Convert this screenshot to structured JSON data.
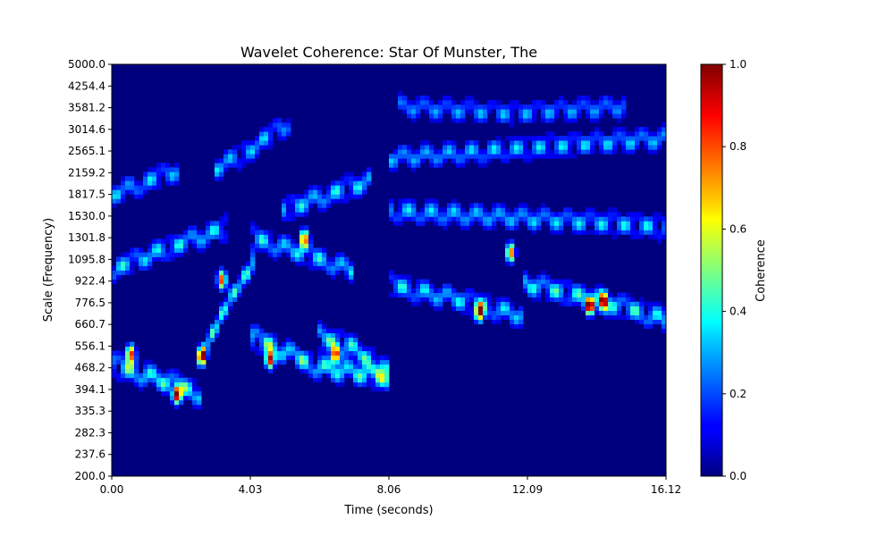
{
  "chart_data": {
    "type": "heatmap",
    "title": "Wavelet Coherence: Star Of Munster, The",
    "xlabel": "Time (seconds)",
    "ylabel": "Scale (Frequency)",
    "xlim": [
      0.0,
      16.12
    ],
    "ylim": [
      200.0,
      5000.0
    ],
    "x_ticks": [
      "0.00",
      "4.03",
      "8.06",
      "12.09",
      "16.12"
    ],
    "y_ticks": [
      "200.0",
      "237.6",
      "282.3",
      "335.3",
      "394.1",
      "468.2",
      "556.1",
      "660.7",
      "776.5",
      "922.4",
      "1095.8",
      "1301.8",
      "1530.0",
      "1817.5",
      "2159.2",
      "2565.1",
      "3014.6",
      "3581.2",
      "4254.4",
      "5000.0"
    ],
    "colorbar": {
      "label": "Coherence",
      "range": [
        0.0,
        1.0
      ],
      "ticks": [
        "0.0",
        "0.2",
        "0.4",
        "0.6",
        "0.8",
        "1.0"
      ],
      "colormap": "jet"
    },
    "background_color": "#00007f",
    "bands": [
      {
        "t_start": 0.0,
        "t_end": 2.6,
        "center": [
          480,
          430,
          380
        ],
        "strength": 0.55
      },
      {
        "t_start": 0.0,
        "t_end": 3.4,
        "center": [
          1000,
          1200,
          1400
        ],
        "strength": 0.45
      },
      {
        "t_start": 0.0,
        "t_end": 2.0,
        "center": [
          1800,
          2000,
          2200
        ],
        "strength": 0.4
      },
      {
        "t_start": 2.6,
        "t_end": 4.2,
        "center": [
          500,
          800,
          1100
        ],
        "strength": 0.5
      },
      {
        "t_start": 3.0,
        "t_end": 5.2,
        "center": [
          2200,
          2600,
          3200
        ],
        "strength": 0.4
      },
      {
        "t_start": 4.0,
        "t_end": 8.0,
        "center": [
          600,
          470,
          430
        ],
        "strength": 0.55
      },
      {
        "t_start": 4.0,
        "t_end": 7.0,
        "center": [
          1300,
          1150,
          1000
        ],
        "strength": 0.45
      },
      {
        "t_start": 5.0,
        "t_end": 7.5,
        "center": [
          1600,
          1800,
          2000
        ],
        "strength": 0.45
      },
      {
        "t_start": 6.0,
        "t_end": 8.0,
        "center": [
          600,
          550,
          450
        ],
        "strength": 0.5
      },
      {
        "t_start": 8.0,
        "t_end": 16.12,
        "center": [
          2400,
          2600,
          2800
        ],
        "strength": 0.4
      },
      {
        "t_start": 8.0,
        "t_end": 16.12,
        "center": [
          1600,
          1500,
          1400
        ],
        "strength": 0.42
      },
      {
        "t_start": 8.0,
        "t_end": 12.0,
        "center": [
          900,
          800,
          700
        ],
        "strength": 0.45
      },
      {
        "t_start": 12.0,
        "t_end": 16.12,
        "center": [
          900,
          800,
          680
        ],
        "strength": 0.5
      },
      {
        "t_start": 8.3,
        "t_end": 15.0,
        "center": [
          3600,
          3400,
          3600
        ],
        "strength": 0.35
      }
    ],
    "hotspots": [
      {
        "t": 0.55,
        "f": 520,
        "v": 0.9
      },
      {
        "t": 1.9,
        "f": 380,
        "v": 0.95
      },
      {
        "t": 2.6,
        "f": 510,
        "v": 0.95
      },
      {
        "t": 3.2,
        "f": 930,
        "v": 0.85
      },
      {
        "t": 4.6,
        "f": 500,
        "v": 0.95
      },
      {
        "t": 6.5,
        "f": 520,
        "v": 0.9
      },
      {
        "t": 5.6,
        "f": 1280,
        "v": 0.85
      },
      {
        "t": 13.9,
        "f": 760,
        "v": 1.0
      },
      {
        "t": 14.3,
        "f": 780,
        "v": 0.95
      },
      {
        "t": 11.6,
        "f": 1150,
        "v": 0.85
      },
      {
        "t": 10.7,
        "f": 720,
        "v": 0.85
      }
    ]
  }
}
